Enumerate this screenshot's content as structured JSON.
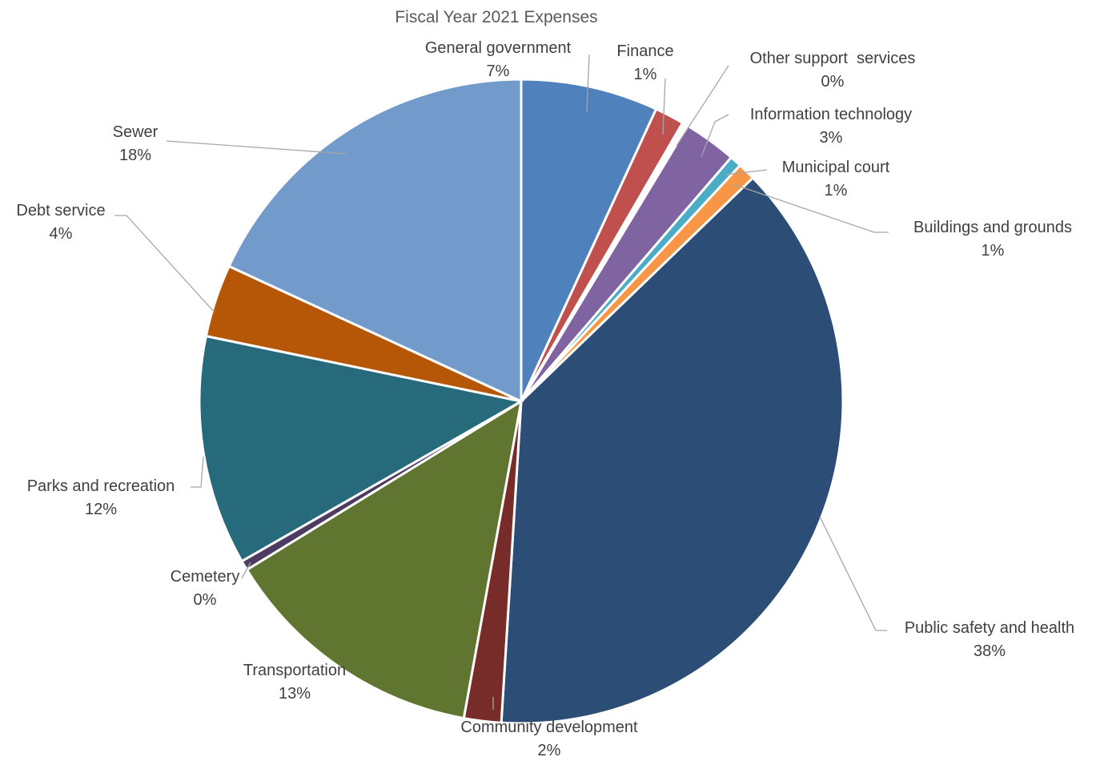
{
  "chart_data": {
    "type": "pie",
    "title": "Fiscal Year 2021 Expenses",
    "legend": "none",
    "slices": [
      {
        "name": "General government",
        "value": 7,
        "label": "7%",
        "color": "#4f81bd"
      },
      {
        "name": "Finance",
        "value": 1.5,
        "label": "1%",
        "color": "#c0504d"
      },
      {
        "name": "Other support  services",
        "value": 0.3,
        "label": "0%",
        "color": "#ffffff"
      },
      {
        "name": "Information technology",
        "value": 2.7,
        "label": "3%",
        "color": "#8064a2"
      },
      {
        "name": "Municipal court",
        "value": 0.6,
        "label": "1%",
        "color": "#4bacc6"
      },
      {
        "name": "Buildings and grounds",
        "value": 0.9,
        "label": "1%",
        "color": "#f79646"
      },
      {
        "name": "Public safety and health",
        "value": 38.8,
        "label": "38%",
        "color": "#2c4d75"
      },
      {
        "name": "Community development",
        "value": 1.9,
        "label": "2%",
        "color": "#772c2a"
      },
      {
        "name": "Transportation",
        "value": 13.6,
        "label": "13%",
        "color": "#5f7530"
      },
      {
        "name": "Cemetery",
        "value": 0.5,
        "label": "0%",
        "color": "#4d3b62"
      },
      {
        "name": "Parks and recreation",
        "value": 11.7,
        "label": "12%",
        "color": "#276a7c"
      },
      {
        "name": "Debt service",
        "value": 3.7,
        "label": "4%",
        "color": "#b65708"
      },
      {
        "name": "Sewer",
        "value": 18.4,
        "label": "18%",
        "color": "#729aca"
      }
    ]
  }
}
